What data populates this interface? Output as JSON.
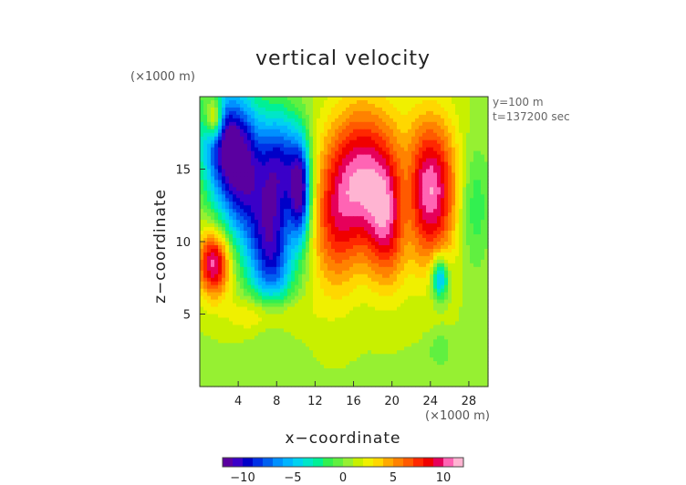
{
  "chart_data": {
    "type": "heatmap",
    "title": "vertical velocity",
    "xlabel": "x−coordinate",
    "ylabel": "z−coordinate",
    "x_unit": "(×1000 m)",
    "z_unit": "(×1000 m)",
    "info_lines": [
      "y=100 m",
      "t=137200 sec"
    ],
    "xlim": [
      0,
      30
    ],
    "zlim": [
      0,
      20
    ],
    "x_ticks": [
      {
        "value": 4,
        "label": "4"
      },
      {
        "value": 8,
        "label": "8"
      },
      {
        "value": 12,
        "label": "12"
      },
      {
        "value": 16,
        "label": "16"
      },
      {
        "value": 20,
        "label": "20"
      },
      {
        "value": 24,
        "label": "24"
      },
      {
        "value": 28,
        "label": "28"
      }
    ],
    "z_ticks": [
      {
        "value": 5,
        "label": "5"
      },
      {
        "value": 10,
        "label": "10"
      },
      {
        "value": 15,
        "label": "15"
      }
    ],
    "colorbar": {
      "min": -12,
      "max": 12,
      "ticks": [
        {
          "value": -10,
          "label": "−10"
        },
        {
          "value": -5,
          "label": "−5"
        },
        {
          "value": 0,
          "label": "0"
        },
        {
          "value": 5,
          "label": "5"
        },
        {
          "value": 10,
          "label": "10"
        }
      ],
      "colors": [
        "#5a00a0",
        "#3a00c8",
        "#0000c8",
        "#0030e6",
        "#0060f0",
        "#0090ff",
        "#00b4ff",
        "#00d2f0",
        "#00e6c8",
        "#00f096",
        "#32f050",
        "#60f040",
        "#96f032",
        "#c8f000",
        "#f0f000",
        "#ffd700",
        "#ffaa00",
        "#ff8200",
        "#ff5a00",
        "#ff2800",
        "#f00000",
        "#e6005a",
        "#ff64b4",
        "#ffb4d2"
      ]
    },
    "grid": false,
    "features": [
      {
        "x": 4.5,
        "z": 14.5,
        "value": -10,
        "sx": 2.0,
        "sz": 3.5
      },
      {
        "x": 2.5,
        "z": 17.0,
        "value": -8,
        "sx": 1.8,
        "sz": 2.5
      },
      {
        "x": 7.5,
        "z": 9.5,
        "value": -10,
        "sx": 1.6,
        "sz": 3.2
      },
      {
        "x": 8.5,
        "z": 15.5,
        "value": -8,
        "sx": 1.4,
        "sz": 2.5
      },
      {
        "x": 10.5,
        "z": 13.5,
        "value": -11,
        "sx": 0.8,
        "sz": 2.5
      },
      {
        "x": 1.5,
        "z": 8.5,
        "value": 10,
        "sx": 1.2,
        "sz": 1.6
      },
      {
        "x": 1.5,
        "z": 18.5,
        "value": 8,
        "sx": 0.6,
        "sz": 1.0
      },
      {
        "x": 17.0,
        "z": 14.5,
        "value": 9,
        "sx": 2.6,
        "sz": 3.5
      },
      {
        "x": 14.0,
        "z": 11.0,
        "value": 5,
        "sx": 1.8,
        "sz": 3.5
      },
      {
        "x": 24.0,
        "z": 13.5,
        "value": 10,
        "sx": 2.0,
        "sz": 3.5
      },
      {
        "x": 19.5,
        "z": 11.0,
        "value": 6,
        "sx": 1.5,
        "sz": 3.0
      },
      {
        "x": 21.5,
        "z": 13.0,
        "value": -3,
        "sx": 1.0,
        "sz": 2.8
      },
      {
        "x": 25.0,
        "z": 7.5,
        "value": -8,
        "sx": 0.6,
        "sz": 1.0
      },
      {
        "x": 28.5,
        "z": 12.5,
        "value": -3,
        "sx": 1.2,
        "sz": 3.0
      },
      {
        "x": 7.0,
        "z": 5.0,
        "value": 4,
        "sx": 2.5,
        "sz": 1.0
      },
      {
        "x": 25.0,
        "z": 2.5,
        "value": -2,
        "sx": 0.8,
        "sz": 0.8
      }
    ]
  }
}
